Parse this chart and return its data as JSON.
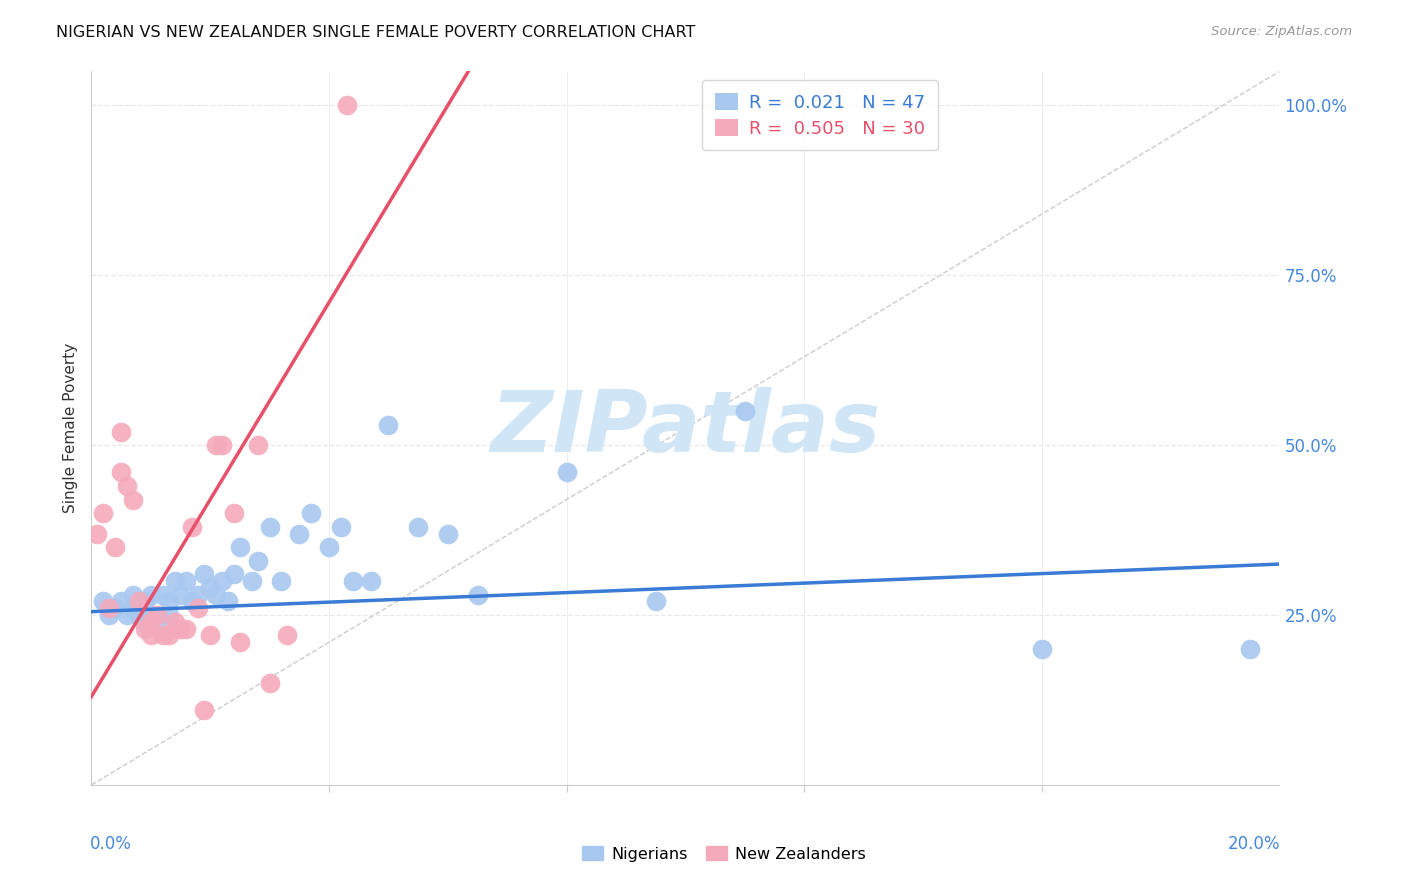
{
  "title": "NIGERIAN VS NEW ZEALANDER SINGLE FEMALE POVERTY CORRELATION CHART",
  "source": "Source: ZipAtlas.com",
  "ylabel": "Single Female Poverty",
  "right_yticks": [
    0.0,
    0.25,
    0.5,
    0.75,
    1.0
  ],
  "right_yticklabels": [
    "",
    "25.0%",
    "50.0%",
    "75.0%",
    "100.0%"
  ],
  "legend_blue_R": "0.021",
  "legend_blue_N": "47",
  "legend_pink_R": "0.505",
  "legend_pink_N": "30",
  "blue_marker_color": "#A8C8F0",
  "pink_marker_color": "#F5AABB",
  "blue_line_color": "#3A7BD5",
  "pink_line_color": "#E8506A",
  "right_axis_color": "#4488DD",
  "grid_color": "#E8E8E8",
  "diag_color": "#CCCCCC",
  "watermark_text": "ZIPatlas",
  "watermark_color": "#D0E5F5",
  "nigerians_x": [
    0.002,
    0.003,
    0.004,
    0.005,
    0.006,
    0.007,
    0.007,
    0.008,
    0.009,
    0.009,
    0.01,
    0.01,
    0.011,
    0.012,
    0.013,
    0.013,
    0.014,
    0.015,
    0.016,
    0.017,
    0.018,
    0.019,
    0.02,
    0.021,
    0.022,
    0.023,
    0.024,
    0.025,
    0.027,
    0.028,
    0.03,
    0.032,
    0.035,
    0.037,
    0.04,
    0.042,
    0.044,
    0.047,
    0.05,
    0.055,
    0.06,
    0.065,
    0.08,
    0.095,
    0.11,
    0.16,
    0.195
  ],
  "nigerians_y": [
    0.27,
    0.25,
    0.26,
    0.27,
    0.25,
    0.28,
    0.26,
    0.25,
    0.24,
    0.27,
    0.28,
    0.25,
    0.24,
    0.28,
    0.27,
    0.25,
    0.3,
    0.28,
    0.3,
    0.27,
    0.28,
    0.31,
    0.29,
    0.28,
    0.3,
    0.27,
    0.31,
    0.35,
    0.3,
    0.33,
    0.38,
    0.3,
    0.37,
    0.4,
    0.35,
    0.38,
    0.3,
    0.3,
    0.53,
    0.38,
    0.37,
    0.28,
    0.46,
    0.27,
    0.55,
    0.2,
    0.2
  ],
  "new_zealanders_x": [
    0.001,
    0.002,
    0.003,
    0.004,
    0.005,
    0.005,
    0.006,
    0.007,
    0.008,
    0.009,
    0.01,
    0.01,
    0.011,
    0.012,
    0.013,
    0.014,
    0.015,
    0.016,
    0.017,
    0.018,
    0.019,
    0.02,
    0.021,
    0.022,
    0.024,
    0.025,
    0.028,
    0.03,
    0.033,
    0.043
  ],
  "new_zealanders_y": [
    0.37,
    0.4,
    0.26,
    0.35,
    0.52,
    0.46,
    0.44,
    0.42,
    0.27,
    0.23,
    0.22,
    0.24,
    0.25,
    0.22,
    0.22,
    0.24,
    0.23,
    0.23,
    0.38,
    0.26,
    0.11,
    0.22,
    0.5,
    0.5,
    0.4,
    0.21,
    0.5,
    0.15,
    0.22,
    1.0
  ],
  "xmin": 0.0,
  "xmax": 0.2,
  "ymin": 0.0,
  "ymax": 1.05,
  "blue_reg_slope": 0.35,
  "blue_reg_intercept": 0.255,
  "pink_reg_slope": 14.5,
  "pink_reg_intercept": 0.13
}
